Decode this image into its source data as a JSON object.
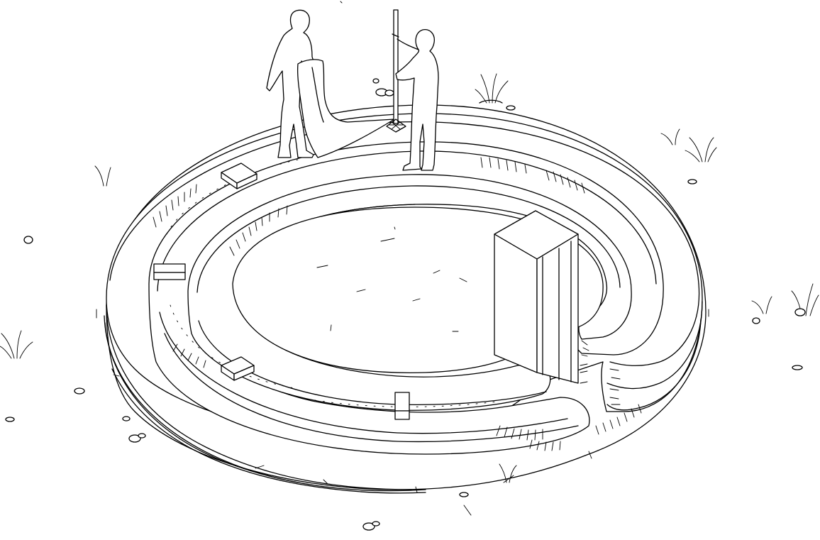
{
  "illustration": {
    "subject": "",
    "colors": {
      "line": "#000000",
      "background": "#ffffff"
    }
  }
}
